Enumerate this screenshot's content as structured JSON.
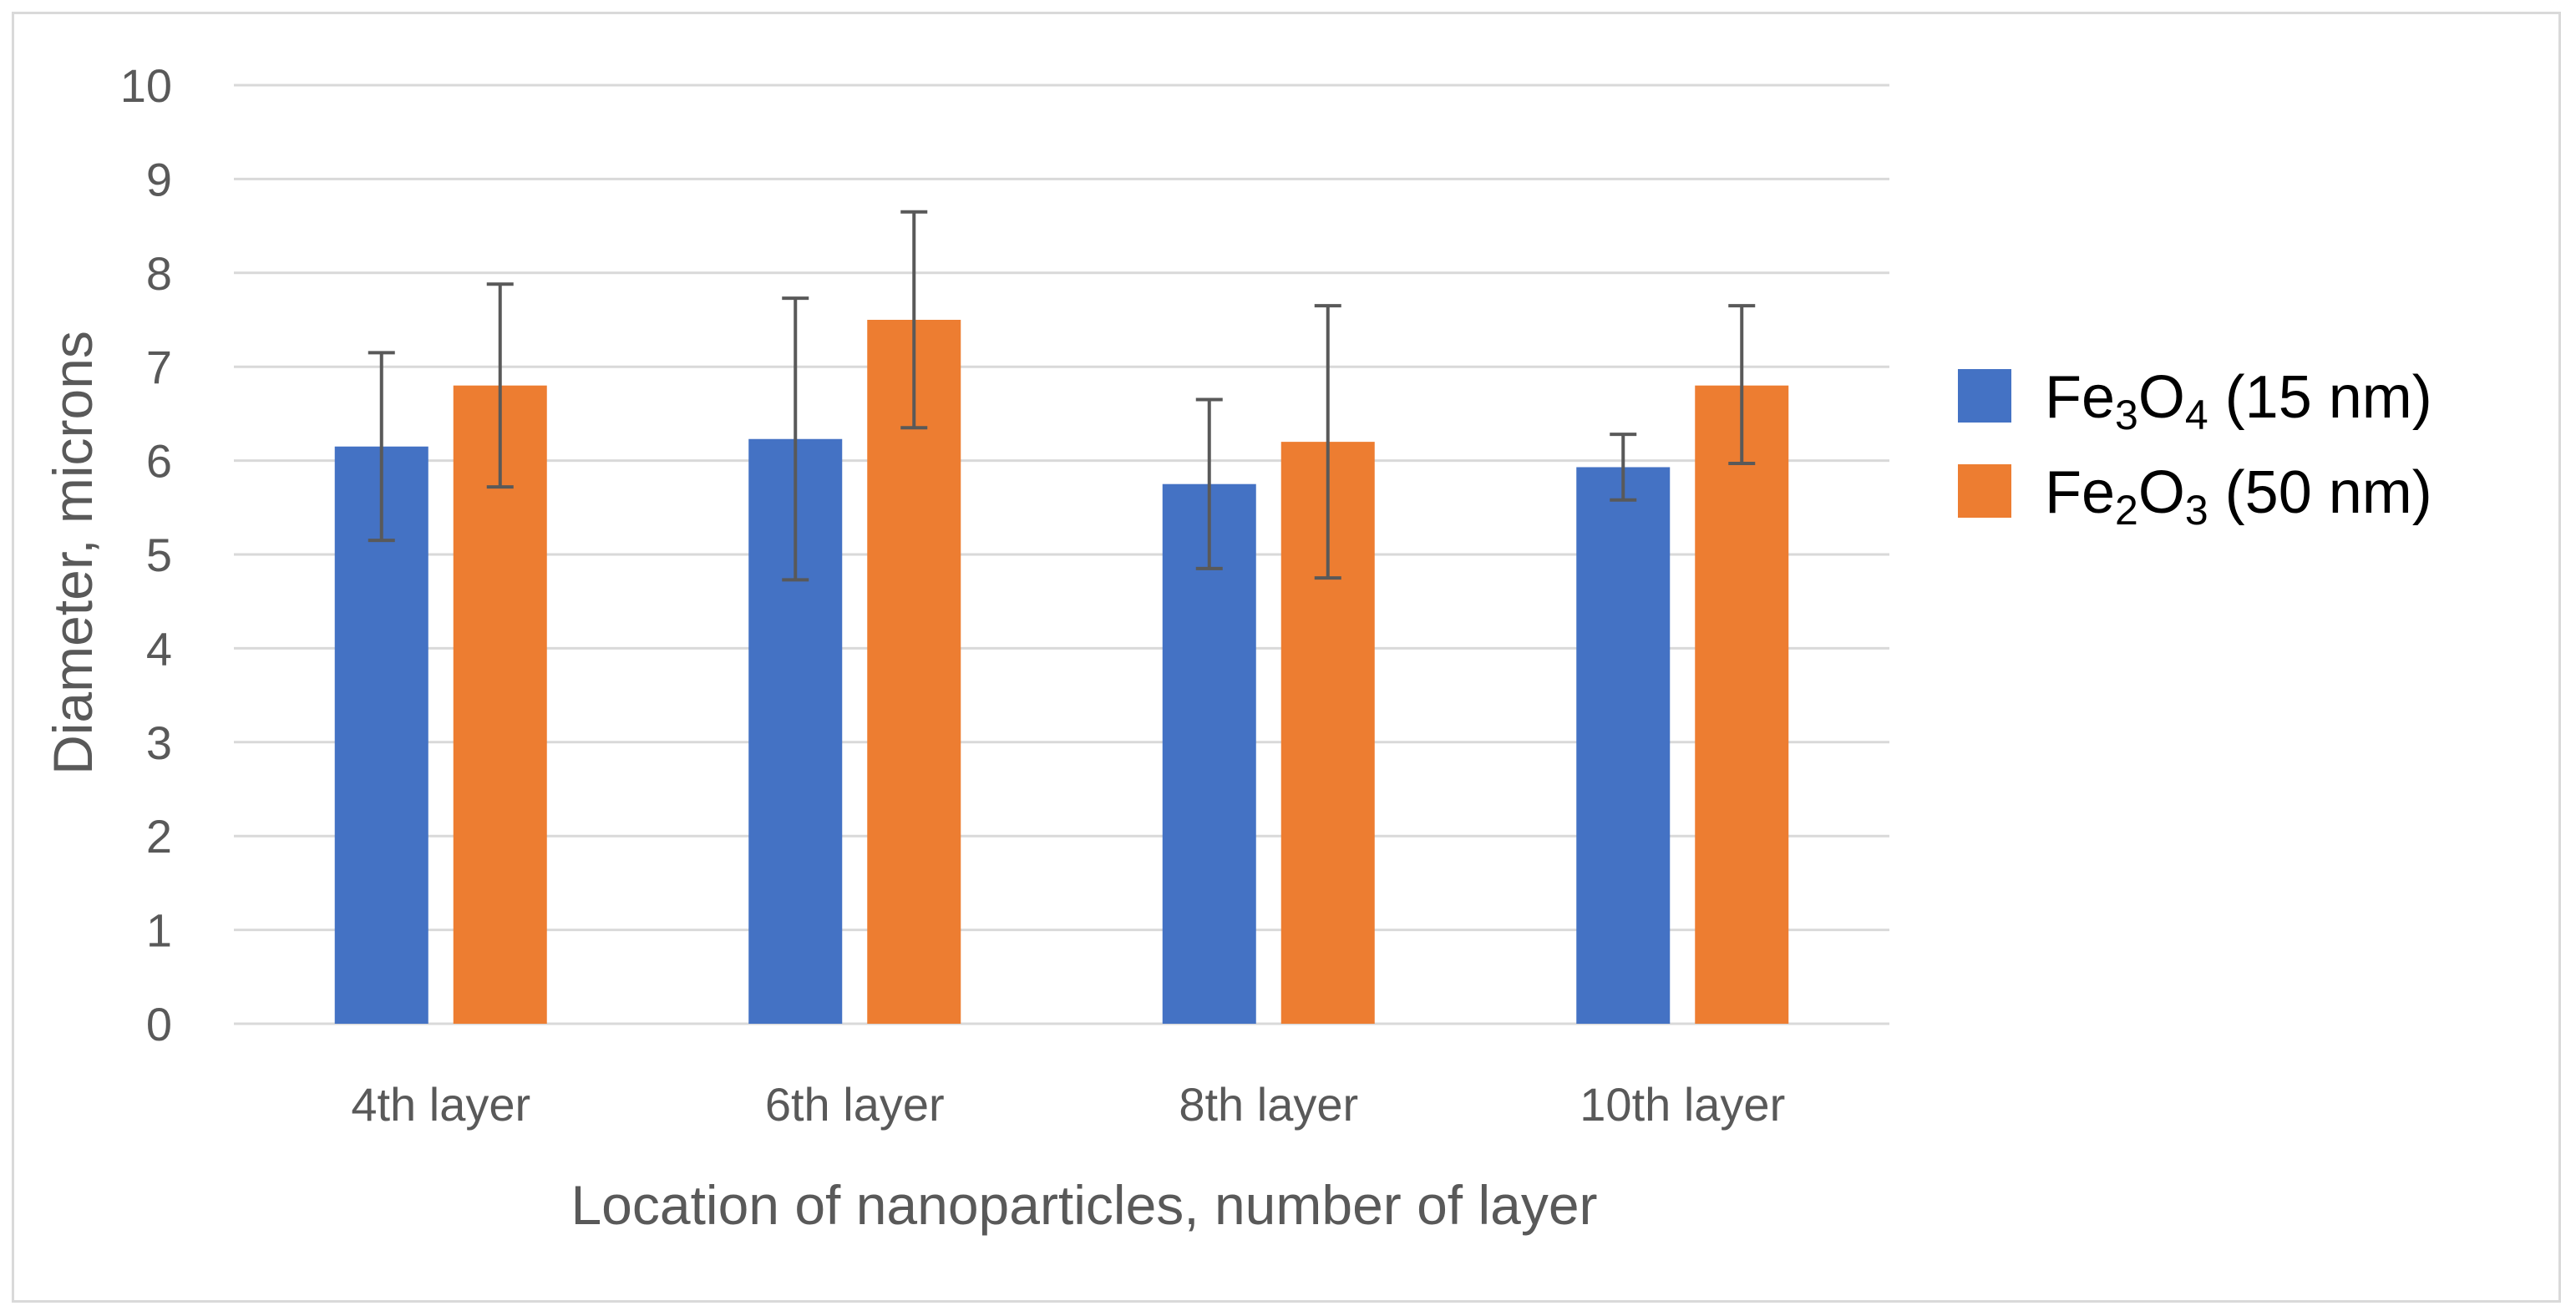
{
  "chart_data": {
    "type": "bar",
    "title": "",
    "xlabel": "Location of nanoparticles, number of layer",
    "ylabel": "Diameter, microns",
    "ylim": [
      0,
      10
    ],
    "yticks": [
      "0",
      "1",
      "2",
      "3",
      "4",
      "5",
      "6",
      "7",
      "8",
      "9",
      "10"
    ],
    "grid": true,
    "legend_position": "right",
    "categories": [
      "4th layer",
      "6th layer",
      "8th layer",
      "10th layer"
    ],
    "series": [
      {
        "name": "Fe3O4 (15 nm)",
        "legend": {
          "base": "Fe",
          "sub1": "3",
          "mid": "O",
          "sub2": "4",
          "rest": " (15 nm)"
        },
        "color": "#4472c4",
        "values": [
          6.15,
          6.23,
          5.75,
          5.93
        ],
        "err_low": [
          5.15,
          4.73,
          4.85,
          5.58
        ],
        "err_high": [
          7.15,
          7.73,
          6.65,
          6.28
        ]
      },
      {
        "name": "Fe2O3 (50 nm)",
        "legend": {
          "base": "Fe",
          "sub1": "2",
          "mid": "O",
          "sub2": "3",
          "rest": " (50 nm)"
        },
        "color": "#ed7d31",
        "values": [
          6.8,
          7.5,
          6.2,
          6.8
        ],
        "err_low": [
          5.72,
          6.35,
          4.75,
          5.97
        ],
        "err_high": [
          7.88,
          8.65,
          7.65,
          7.65
        ]
      }
    ],
    "colors": {
      "grid": "#d9d9d9",
      "errorbar": "#595959",
      "text": "#595959"
    }
  }
}
